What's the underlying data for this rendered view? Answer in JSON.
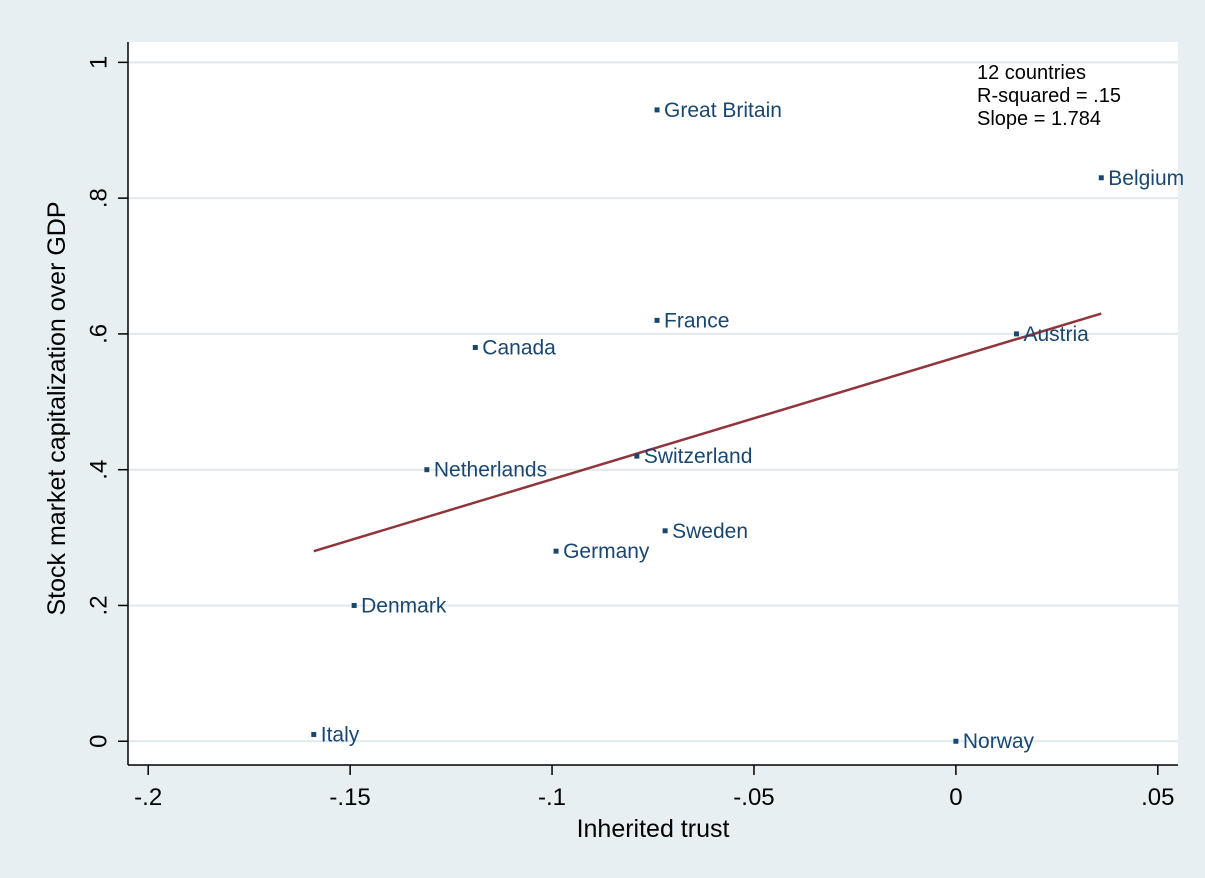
{
  "chart_data": {
    "type": "scatter",
    "xlabel": "Inherited trust",
    "ylabel": "Stock market capitalization over GDP",
    "xlim": [
      -0.205,
      0.055
    ],
    "ylim": [
      -0.035,
      1.03
    ],
    "x_ticks": [
      -0.2,
      -0.15,
      -0.1,
      -0.05,
      0,
      0.05
    ],
    "x_tick_labels": [
      "-.2",
      "-.15",
      "-.1",
      "-.05",
      "0",
      ".05"
    ],
    "y_ticks": [
      0,
      0.2,
      0.4,
      0.6,
      0.8,
      1
    ],
    "y_tick_labels": [
      "0",
      ".2",
      ".4",
      ".6",
      ".8",
      "1"
    ],
    "grid": "horizontal",
    "points": [
      {
        "label": "Great Britain",
        "x": -0.074,
        "y": 0.93
      },
      {
        "label": "Belgium",
        "x": 0.036,
        "y": 0.83
      },
      {
        "label": "France",
        "x": -0.074,
        "y": 0.62
      },
      {
        "label": "Canada",
        "x": -0.119,
        "y": 0.58
      },
      {
        "label": "Austria",
        "x": 0.015,
        "y": 0.6
      },
      {
        "label": "Netherlands",
        "x": -0.131,
        "y": 0.4
      },
      {
        "label": "Switzerland",
        "x": -0.079,
        "y": 0.42
      },
      {
        "label": "Sweden",
        "x": -0.072,
        "y": 0.31
      },
      {
        "label": "Germany",
        "x": -0.099,
        "y": 0.28
      },
      {
        "label": "Denmark",
        "x": -0.149,
        "y": 0.2
      },
      {
        "label": "Italy",
        "x": -0.159,
        "y": 0.01
      },
      {
        "label": "Norway",
        "x": 0.0,
        "y": 0.0
      }
    ],
    "fit_line": {
      "x": [
        -0.159,
        0.036
      ],
      "y": [
        0.28,
        0.63
      ]
    },
    "annotation": [
      "12 countries",
      "R-squared = .15",
      "Slope = 1.784"
    ],
    "colors": {
      "background": "#e8eff3",
      "plot_area": "#ffffff",
      "grid": "#dfe9ee",
      "marker": "#1a476f",
      "label": "#1a476f",
      "fit_line": "#90353b",
      "axis": "#000000",
      "text": "#000000"
    }
  }
}
